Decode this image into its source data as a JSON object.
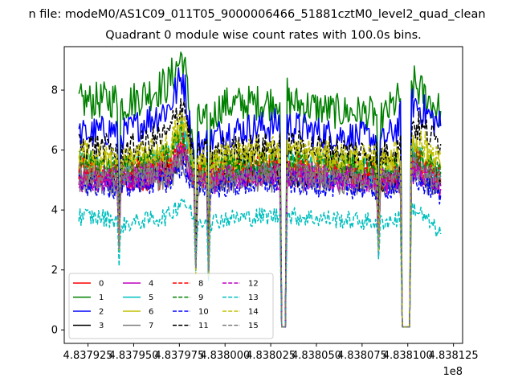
{
  "suptitle": "n file: modeM0/AS1C09_011T05_9000006466_51881cztM0_level2_quad_clean",
  "chart_data": {
    "type": "line",
    "title": "Quadrant 0 module wise count rates with 100.0s bins.",
    "xlabel": "",
    "ylabel": "",
    "x_offset_label": "1e8",
    "x_ticks": [
      "4.837925",
      "4.837950",
      "4.837975",
      "4.838000",
      "4.838025",
      "4.838050",
      "4.838075",
      "4.838100",
      "4.838125"
    ],
    "y_ticks": [
      "0",
      "2",
      "4",
      "6",
      "8"
    ],
    "xlim": [
      4.837912,
      4.83813
    ],
    "ylim": [
      -0.45,
      9.45
    ],
    "legend_position": "lower-left",
    "grid": false,
    "breakpoints_x": [
      4.83792,
      4.837941,
      4.837942,
      4.837943,
      4.837969,
      4.837977,
      4.837983,
      4.837984,
      4.837985,
      4.83799,
      4.837991,
      4.837992,
      4.837998,
      4.838025,
      4.83803,
      4.838031,
      4.838033,
      4.838034,
      4.838035,
      4.838059,
      4.838083,
      4.838084,
      4.838085,
      4.838095,
      4.838096,
      4.838097,
      4.838098,
      4.838101,
      4.838102,
      4.838103,
      4.838118
    ],
    "series": [
      {
        "name": "0",
        "color": "#ff0000",
        "dash": false,
        "values": [
          5.3,
          5.0,
          2.8,
          5.0,
          5.1,
          6.8,
          5.2,
          2.0,
          5.1,
          5.2,
          1.9,
          5.1,
          5.2,
          5.3,
          5.2,
          0.1,
          0.1,
          5.4,
          5.3,
          5.2,
          5.1,
          2.7,
          5.0,
          5.2,
          5.0,
          0.1,
          0.1,
          0.1,
          5.5,
          5.6,
          4.9
        ]
      },
      {
        "name": "1",
        "color": "#008000",
        "dash": false,
        "values": [
          7.6,
          7.7,
          3.0,
          7.5,
          8.2,
          9.2,
          6.0,
          2.1,
          7.0,
          7.0,
          2.0,
          7.0,
          7.5,
          7.6,
          7.8,
          0.1,
          0.1,
          7.9,
          7.6,
          7.3,
          7.2,
          3.0,
          7.0,
          7.7,
          7.8,
          0.1,
          0.1,
          0.1,
          8.0,
          8.2,
          7.3
        ]
      },
      {
        "name": "2",
        "color": "#0000ff",
        "dash": false,
        "values": [
          6.5,
          6.7,
          2.9,
          6.5,
          7.4,
          8.5,
          5.8,
          2.0,
          6.2,
          6.3,
          1.9,
          6.3,
          6.6,
          6.8,
          6.9,
          0.1,
          0.1,
          7.0,
          6.8,
          6.5,
          6.4,
          2.9,
          6.2,
          6.8,
          7.1,
          0.1,
          0.1,
          0.1,
          7.4,
          7.6,
          6.8
        ]
      },
      {
        "name": "3",
        "color": "#000000",
        "dash": false,
        "values": [
          5.2,
          5.0,
          2.8,
          5.1,
          5.4,
          5.9,
          5.0,
          2.0,
          5.0,
          5.1,
          1.9,
          5.0,
          5.1,
          5.2,
          5.2,
          0.1,
          0.1,
          5.3,
          5.2,
          5.1,
          5.0,
          2.7,
          5.0,
          5.1,
          5.0,
          0.1,
          0.1,
          0.1,
          5.3,
          5.4,
          4.8
        ]
      },
      {
        "name": "4",
        "color": "#bf00bf",
        "dash": false,
        "values": [
          5.0,
          4.9,
          2.8,
          4.9,
          5.2,
          5.9,
          5.0,
          2.0,
          4.9,
          5.0,
          1.9,
          4.9,
          5.0,
          5.1,
          5.1,
          0.1,
          0.1,
          5.2,
          5.1,
          5.0,
          4.9,
          2.7,
          4.9,
          5.0,
          4.9,
          0.1,
          0.1,
          0.1,
          5.2,
          5.3,
          4.7
        ]
      },
      {
        "name": "5",
        "color": "#00bfbf",
        "dash": false,
        "values": [
          5.5,
          5.3,
          2.8,
          5.3,
          5.7,
          6.7,
          5.2,
          2.0,
          5.2,
          5.3,
          1.9,
          5.3,
          5.4,
          5.5,
          5.5,
          0.1,
          0.1,
          5.6,
          5.5,
          5.4,
          5.3,
          2.8,
          5.2,
          5.4,
          5.3,
          0.1,
          0.1,
          0.1,
          5.7,
          5.8,
          5.1
        ]
      },
      {
        "name": "6",
        "color": "#bfbf00",
        "dash": false,
        "values": [
          5.7,
          5.5,
          2.8,
          5.5,
          5.9,
          6.9,
          5.4,
          2.0,
          5.4,
          5.5,
          1.9,
          5.5,
          5.6,
          5.8,
          5.8,
          0.1,
          0.1,
          5.9,
          5.7,
          5.6,
          5.5,
          2.8,
          5.4,
          5.7,
          5.6,
          0.1,
          0.1,
          0.1,
          6.0,
          6.1,
          5.4
        ]
      },
      {
        "name": "7",
        "color": "#808080",
        "dash": false,
        "values": [
          5.0,
          4.8,
          2.8,
          4.9,
          5.1,
          5.6,
          4.9,
          2.0,
          4.8,
          4.9,
          1.9,
          4.8,
          4.9,
          5.0,
          5.0,
          0.1,
          0.1,
          5.1,
          5.0,
          4.9,
          4.8,
          2.7,
          4.8,
          4.9,
          4.8,
          0.1,
          0.1,
          0.1,
          5.1,
          5.2,
          4.6
        ]
      },
      {
        "name": "8",
        "color": "#ff0000",
        "dash": true,
        "values": [
          5.4,
          5.2,
          2.8,
          5.2,
          5.5,
          6.3,
          5.1,
          2.0,
          5.1,
          5.2,
          1.9,
          5.2,
          5.3,
          5.4,
          5.4,
          0.1,
          0.1,
          5.5,
          5.4,
          5.3,
          5.2,
          2.7,
          5.1,
          5.3,
          5.2,
          0.1,
          0.1,
          0.1,
          5.6,
          5.7,
          5.0
        ]
      },
      {
        "name": "9",
        "color": "#008000",
        "dash": true,
        "values": [
          5.6,
          5.4,
          2.8,
          5.4,
          5.8,
          6.6,
          5.3,
          2.0,
          5.3,
          5.4,
          1.9,
          5.4,
          5.5,
          5.6,
          5.6,
          0.1,
          0.1,
          5.7,
          5.6,
          5.5,
          5.4,
          2.8,
          5.3,
          5.5,
          5.4,
          0.1,
          0.1,
          0.1,
          5.8,
          5.9,
          5.2
        ]
      },
      {
        "name": "10",
        "color": "#0000ff",
        "dash": true,
        "values": [
          4.9,
          4.7,
          2.8,
          4.8,
          5.0,
          5.5,
          4.8,
          2.0,
          4.7,
          4.8,
          1.9,
          4.7,
          4.8,
          4.9,
          4.9,
          0.1,
          0.1,
          5.0,
          4.9,
          4.8,
          4.7,
          2.7,
          4.7,
          4.8,
          4.7,
          0.1,
          0.1,
          0.1,
          5.0,
          5.1,
          4.5
        ]
      },
      {
        "name": "11",
        "color": "#000000",
        "dash": true,
        "values": [
          6.2,
          6.0,
          2.8,
          5.9,
          6.5,
          7.7,
          5.6,
          2.0,
          5.8,
          5.9,
          1.9,
          5.8,
          6.0,
          6.1,
          6.2,
          0.1,
          0.1,
          6.3,
          6.2,
          6.0,
          5.9,
          2.8,
          5.8,
          6.1,
          6.1,
          0.1,
          0.1,
          0.1,
          6.7,
          6.9,
          6.2
        ]
      },
      {
        "name": "12",
        "color": "#bf00bf",
        "dash": true,
        "values": [
          5.1,
          5.0,
          2.8,
          5.0,
          5.3,
          6.0,
          5.0,
          2.0,
          5.0,
          5.1,
          1.9,
          5.0,
          5.1,
          5.2,
          5.2,
          0.1,
          0.1,
          5.3,
          5.2,
          5.1,
          5.0,
          2.7,
          5.0,
          5.1,
          5.0,
          0.1,
          0.1,
          0.1,
          5.3,
          5.4,
          4.8
        ]
      },
      {
        "name": "13",
        "color": "#00bfbf",
        "dash": true,
        "values": [
          3.8,
          3.7,
          2.1,
          3.5,
          3.8,
          4.4,
          3.7,
          1.9,
          3.6,
          3.7,
          1.8,
          3.6,
          3.7,
          3.8,
          3.8,
          0.1,
          0.1,
          3.9,
          3.8,
          3.7,
          3.6,
          2.3,
          3.6,
          3.7,
          3.6,
          0.1,
          0.1,
          0.1,
          4.0,
          4.1,
          3.2
        ]
      },
      {
        "name": "14",
        "color": "#bfbf00",
        "dash": true,
        "values": [
          5.9,
          5.7,
          2.8,
          5.6,
          6.1,
          7.0,
          5.5,
          2.0,
          5.6,
          5.7,
          1.9,
          5.6,
          5.8,
          6.0,
          6.1,
          0.1,
          0.1,
          6.2,
          6.0,
          5.8,
          5.7,
          2.8,
          5.6,
          5.9,
          5.8,
          0.1,
          0.1,
          0.1,
          6.2,
          6.4,
          5.8
        ]
      },
      {
        "name": "15",
        "color": "#808080",
        "dash": true,
        "values": [
          5.2,
          5.0,
          2.8,
          5.1,
          5.3,
          6.0,
          5.0,
          2.0,
          5.0,
          5.1,
          1.9,
          5.0,
          5.1,
          5.2,
          5.2,
          0.1,
          0.1,
          5.3,
          5.2,
          5.1,
          5.0,
          2.7,
          5.0,
          5.1,
          5.0,
          0.1,
          0.1,
          0.1,
          5.4,
          5.5,
          4.9
        ]
      }
    ]
  }
}
